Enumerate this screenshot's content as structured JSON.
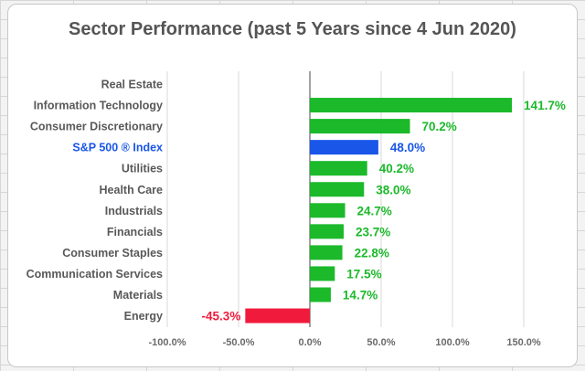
{
  "chart_data": {
    "type": "bar",
    "orientation": "horizontal",
    "title": "Sector Performance (past 5 Years since 4 Jun 2020)",
    "categories": [
      "Real Estate",
      "Information Technology",
      "Consumer Discretionary",
      "S&P 500 ® Index",
      "Utilities",
      "Health Care",
      "Industrials",
      "Financials",
      "Consumer Staples",
      "Communication Services",
      "Materials",
      "Energy"
    ],
    "values": [
      null,
      141.7,
      70.2,
      48.0,
      40.2,
      38.0,
      24.7,
      23.7,
      22.8,
      17.5,
      14.7,
      -45.3
    ],
    "value_labels": [
      "",
      "141.7%",
      "70.2%",
      "48.0%",
      "40.2%",
      "38.0%",
      "24.7%",
      "23.7%",
      "22.8%",
      "17.5%",
      "14.7%",
      "-45.3%"
    ],
    "highlight_category": "S&P 500 ® Index",
    "xlim": [
      -100,
      150
    ],
    "x_ticks": [
      -100,
      -50,
      0,
      50,
      100,
      150
    ],
    "x_tick_labels": [
      "-100.0%",
      "-50.0%",
      "0.0%",
      "50.0%",
      "100.0%",
      "150.0%"
    ],
    "xlabel": "",
    "ylabel": "",
    "grid": "vertical",
    "legend": "none",
    "colors": {
      "positive": "#1cb92b",
      "negative": "#f01b3c",
      "index": "#1a56e8",
      "grid": "#d9d9d9",
      "zero_line": "#444444"
    }
  }
}
